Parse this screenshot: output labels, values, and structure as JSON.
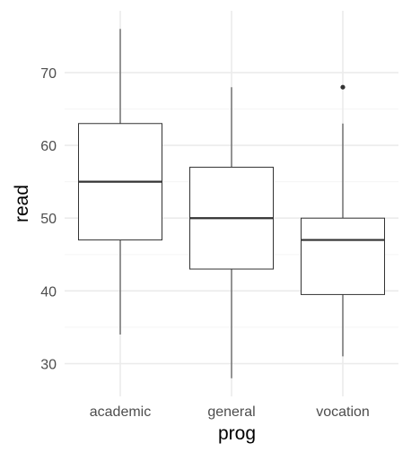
{
  "chart_data": {
    "type": "box",
    "xlabel": "prog",
    "ylabel": "read",
    "categories": [
      "academic",
      "general",
      "vocation"
    ],
    "yticks": [
      30,
      40,
      50,
      60,
      70
    ],
    "ylim": [
      25.5,
      78.5
    ],
    "grid": true,
    "boxes": [
      {
        "category": "academic",
        "min": 34,
        "q1": 47,
        "median": 55,
        "q3": 63,
        "max": 76,
        "outliers": []
      },
      {
        "category": "general",
        "min": 28,
        "q1": 43,
        "median": 50,
        "q3": 57,
        "max": 68,
        "outliers": []
      },
      {
        "category": "vocation",
        "min": 31,
        "q1": 39.5,
        "median": 47,
        "q3": 50,
        "max": 63,
        "outliers": [
          68
        ]
      }
    ],
    "colors": {
      "box_fill": "#ffffff",
      "box_stroke": "#333333",
      "grid_major": "#ebebeb",
      "grid_minor": "#f5f5f5"
    }
  }
}
